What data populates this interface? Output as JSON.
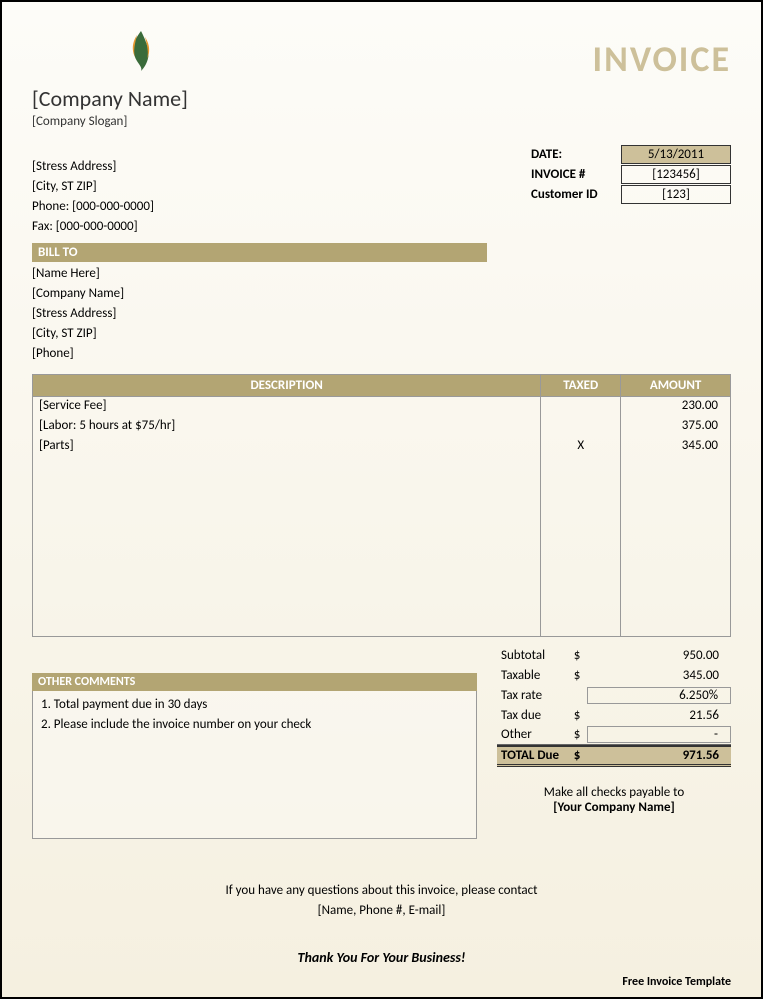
{
  "colors": {
    "accent": "#b3a573",
    "accent_light": "#cdc09a",
    "page_bg_top": "#fdfcf8",
    "page_bg_bottom": "#f5f0e0",
    "border": "#999",
    "text": "#333"
  },
  "header": {
    "company_name": "[Company Name]",
    "company_slogan": "[Company Slogan]",
    "invoice_title": "INVOICE"
  },
  "meta": {
    "date_label": "DATE:",
    "date_value": "5/13/2011",
    "invoice_num_label": "INVOICE #",
    "invoice_num_value": "[123456]",
    "customer_id_label": "Customer ID",
    "customer_id_value": "[123]"
  },
  "from": {
    "address": "[Stress Address]",
    "city_st_zip": "[City, ST  ZIP]",
    "phone": "Phone: [000-000-0000]",
    "fax": "Fax: [000-000-0000]"
  },
  "bill_to": {
    "title": "BILL TO",
    "name": "[Name Here]",
    "company": "[Company Name]",
    "address": "[Stress Address]",
    "city_st_zip": "[City, ST  ZIP]",
    "phone": "[Phone]"
  },
  "items_table": {
    "headers": {
      "description": "DESCRIPTION",
      "taxed": "TAXED",
      "amount": "AMOUNT"
    },
    "rows": [
      {
        "description": "[Service Fee]",
        "taxed": "",
        "amount": "230.00"
      },
      {
        "description": "[Labor: 5 hours at $75/hr]",
        "taxed": "",
        "amount": "375.00"
      },
      {
        "description": "[Parts]",
        "taxed": "X",
        "amount": "345.00"
      }
    ],
    "empty_rows": 9
  },
  "comments": {
    "title": "OTHER COMMENTS",
    "lines": [
      "1. Total payment due in 30 days",
      "2. Please include the invoice number on your check"
    ]
  },
  "totals": {
    "rows": [
      {
        "label": "Subtotal",
        "currency": "$",
        "value": "950.00",
        "boxed": false
      },
      {
        "label": "Taxable",
        "currency": "$",
        "value": "345.00",
        "boxed": false
      },
      {
        "label": "Tax rate",
        "currency": "",
        "value": "6.250%",
        "boxed": true
      },
      {
        "label": "Tax due",
        "currency": "$",
        "value": "21.56",
        "boxed": false
      },
      {
        "label": "Other",
        "currency": "$",
        "value": "-",
        "boxed": true,
        "underline": true
      }
    ],
    "total_label": "TOTAL Due",
    "total_currency": "$",
    "total_value": "971.56"
  },
  "payable": {
    "line1": "Make all checks payable to",
    "line2": "[Your Company Name]"
  },
  "footer": {
    "contact_line1": "If you have any questions about this invoice, please contact",
    "contact_line2": "[Name, Phone #, E-mail]",
    "thank_you": "Thank You For Your Business!",
    "credit": "Free Invoice Template"
  }
}
